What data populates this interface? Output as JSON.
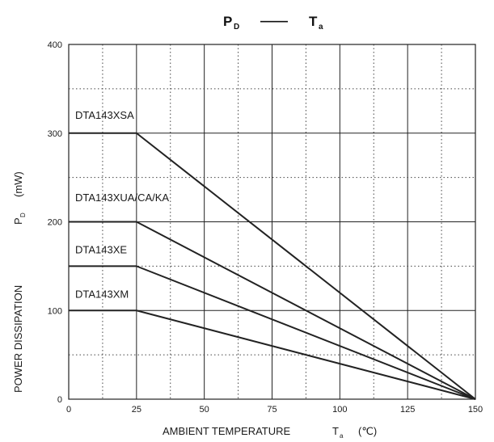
{
  "chart_data": {
    "type": "line",
    "title": {
      "left_main": "P",
      "left_sub": "D",
      "dash": "——",
      "right_main": "T",
      "right_sub": "a"
    },
    "xlabel": {
      "main": "AMBIENT TEMPERATURE",
      "var_main": "T",
      "var_sub": "a",
      "unit": "(℃)"
    },
    "ylabel": {
      "main": "POWER DISSIPATION",
      "var_main": "P",
      "var_sub": "D",
      "unit": "(mW)"
    },
    "xlim": [
      0,
      150
    ],
    "ylim": [
      0,
      400
    ],
    "x_ticks": [
      0,
      25,
      50,
      75,
      100,
      125,
      150
    ],
    "y_ticks": [
      0,
      100,
      200,
      300,
      400
    ],
    "x_minor_dotted": [
      12.5,
      37.5,
      62.5,
      87.5,
      112.5,
      137.5
    ],
    "y_minor_dotted": [
      50,
      150,
      250,
      350
    ],
    "grid": true,
    "series": [
      {
        "name": "DTA143XSA",
        "x": [
          0,
          25,
          150
        ],
        "y": [
          300,
          300,
          0
        ]
      },
      {
        "name": "DTA143XUA/CA/KA",
        "x": [
          0,
          25,
          150
        ],
        "y": [
          200,
          200,
          0
        ]
      },
      {
        "name": "DTA143XE",
        "x": [
          0,
          25,
          150
        ],
        "y": [
          150,
          150,
          0
        ]
      },
      {
        "name": "DTA143XM",
        "x": [
          0,
          25,
          150
        ],
        "y": [
          100,
          100,
          0
        ]
      }
    ],
    "series_label_anchor_y": [
      320,
      227,
      168,
      118
    ]
  }
}
